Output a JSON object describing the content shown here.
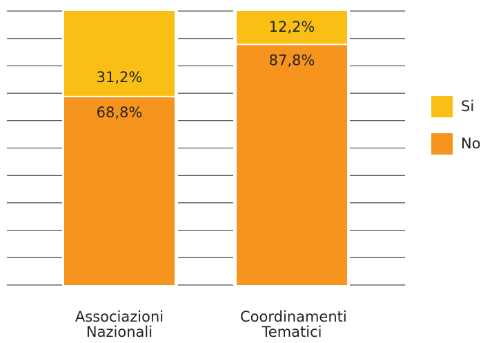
{
  "chart_data": {
    "type": "stacked_bar",
    "categories": [
      "Associazioni Nazionali",
      "Coordinamenti Tematici"
    ],
    "series": [
      {
        "name": "No",
        "color": "#f7941e",
        "values": [
          68.8,
          87.8
        ],
        "value_labels": [
          "68,8%",
          "87,8%"
        ]
      },
      {
        "name": "Si",
        "color": "#f9bf14",
        "values": [
          31.2,
          12.2
        ],
        "value_labels": [
          "31,2%",
          "12,2%"
        ]
      }
    ],
    "ylim": [
      0,
      100
    ],
    "yticks": [
      0,
      10,
      20,
      30,
      40,
      50,
      60,
      70,
      80,
      90,
      100
    ],
    "grid": true,
    "legend": "right"
  }
}
